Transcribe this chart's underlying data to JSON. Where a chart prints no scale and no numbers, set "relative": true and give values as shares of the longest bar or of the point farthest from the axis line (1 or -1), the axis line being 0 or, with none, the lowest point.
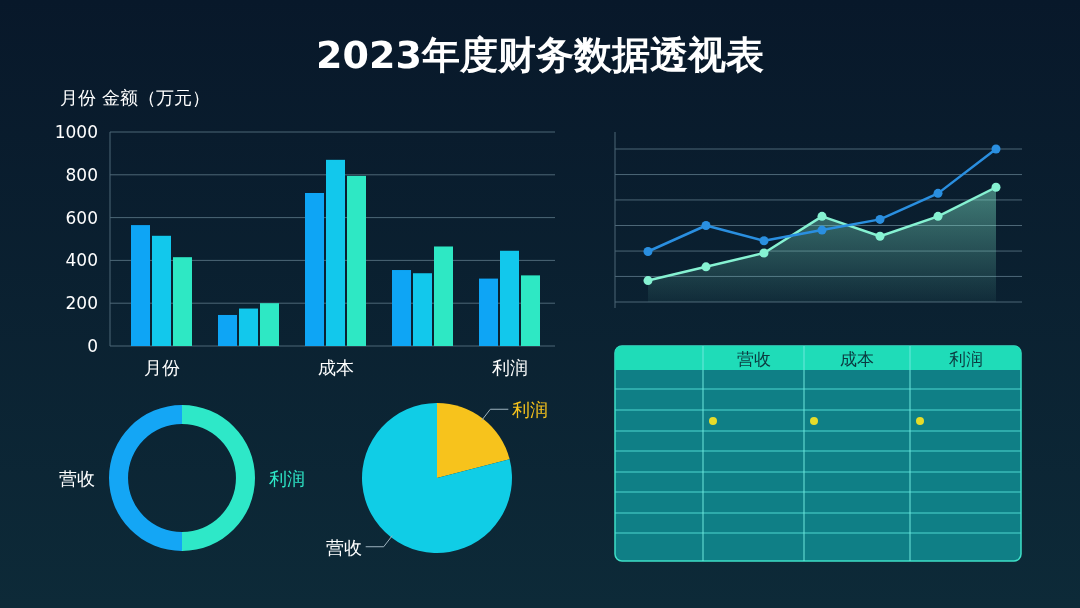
{
  "chart_data": [
    {
      "type": "bar",
      "title": "2023年度财务数据透视表",
      "ylabel": "月份 金额（万元）",
      "categories": [
        "月份",
        null,
        "成本",
        null,
        "利润"
      ],
      "series": [
        {
          "color": "#0ea5f5",
          "values": [
            565,
            145,
            715,
            355,
            315
          ]
        },
        {
          "color": "#12c8ec",
          "values": [
            515,
            175,
            870,
            340,
            445
          ]
        },
        {
          "color": "#2ee8c4",
          "values": [
            415,
            200,
            795,
            465,
            330
          ]
        }
      ],
      "ylim": [
        0,
        1000
      ],
      "yticks": [
        0,
        200,
        400,
        600,
        800,
        1000
      ],
      "grid": "y"
    },
    {
      "type": "line",
      "relative": true,
      "categories": [
        null,
        null,
        null,
        null,
        null,
        null,
        null
      ],
      "series": [
        {
          "color": "#2a8fe0",
          "values": [
            0.33,
            0.5,
            0.4,
            0.47,
            0.54,
            0.71,
            1
          ]
        },
        {
          "type": "area",
          "color": "#86f2d2",
          "values": [
            0.14,
            0.23,
            0.32,
            0.56,
            0.43,
            0.56,
            0.75
          ]
        }
      ],
      "marker": "circle",
      "ref_lines": [
        {
          "axis": "y",
          "value": 0.167
        },
        {
          "axis": "y",
          "value": 0.333
        },
        {
          "axis": "y",
          "value": 0.5
        },
        {
          "axis": "y",
          "value": 0.667
        },
        {
          "axis": "y",
          "value": 0.833
        },
        {
          "axis": "y",
          "value": 1
        }
      ]
    },
    {
      "type": "donut",
      "categories": [
        "营收",
        "利润"
      ],
      "values": [
        50,
        50
      ],
      "colors": [
        "#14a6f5",
        "#2ee8c8"
      ]
    },
    {
      "type": "pie",
      "categories": [
        "利润",
        "营收"
      ],
      "values": [
        21,
        79
      ],
      "colors": [
        "#f7c31c",
        "#10cde6"
      ]
    },
    {
      "type": "other",
      "categories": [
        "营收",
        "成本",
        "利润"
      ]
    }
  ]
}
